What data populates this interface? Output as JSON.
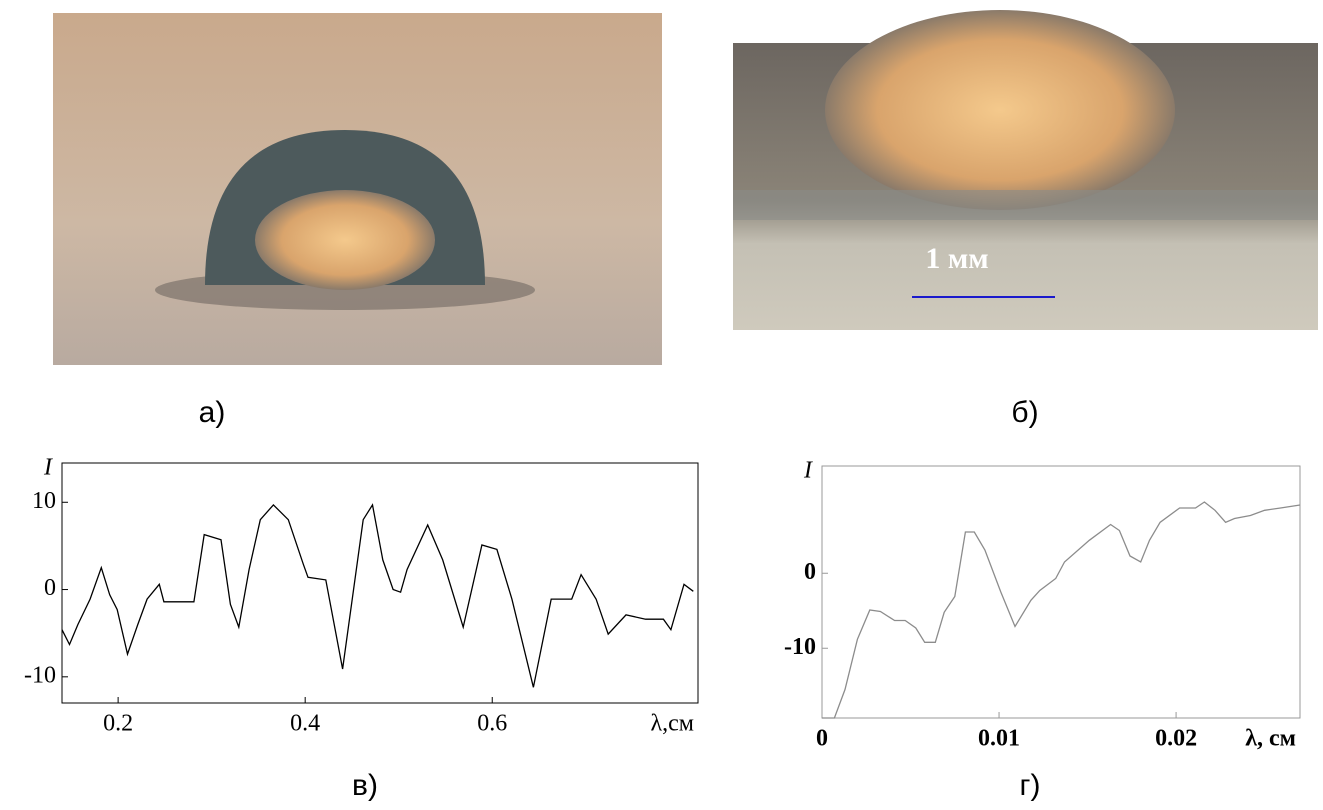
{
  "photos": [
    {
      "caption": "а)"
    },
    {
      "caption": "б)",
      "scale_label": "1 мм"
    }
  ],
  "chart_data": [
    {
      "type": "line",
      "caption": "в)",
      "x_label": "λ,см",
      "y_label": "I",
      "color": "#000000",
      "xlim": [
        0.14,
        0.82
      ],
      "ylim": [
        -13,
        14.5
      ],
      "xticks": [
        0.2,
        0.4,
        0.6
      ],
      "yticks": [
        -10,
        0,
        10
      ],
      "x": [
        0.14,
        0.148,
        0.157,
        0.17,
        0.182,
        0.191,
        0.199,
        0.21,
        0.221,
        0.231,
        0.244,
        0.249,
        0.281,
        0.292,
        0.31,
        0.32,
        0.329,
        0.34,
        0.352,
        0.366,
        0.382,
        0.398,
        0.403,
        0.422,
        0.44,
        0.462,
        0.472,
        0.483,
        0.494,
        0.502,
        0.509,
        0.531,
        0.547,
        0.569,
        0.589,
        0.605,
        0.621,
        0.644,
        0.663,
        0.685,
        0.695,
        0.711,
        0.724,
        0.743,
        0.764,
        0.783,
        0.791,
        0.805,
        0.815
      ],
      "values": [
        -4.6,
        -6.3,
        -4,
        -1.1,
        2.5,
        -0.6,
        -2.3,
        -7.4,
        -4,
        -1.1,
        0.6,
        -1.4,
        -1.4,
        6.3,
        5.7,
        -1.7,
        -4.3,
        2.3,
        8,
        9.7,
        8,
        2.9,
        1.4,
        1.1,
        -9.1,
        8,
        9.7,
        3.4,
        0,
        -0.3,
        2.3,
        7.4,
        3.4,
        -4.3,
        5.1,
        4.6,
        -1.1,
        -11.2,
        -1.1,
        -1.1,
        1.7,
        -1.1,
        -5.1,
        -2.9,
        -3.4,
        -3.4,
        -4.6,
        0.6,
        -0.2
      ]
    },
    {
      "type": "line",
      "caption": "г)",
      "x_label": "λ, см",
      "y_label": "I",
      "color": "#8c8c8c",
      "xlim": [
        0,
        0.027
      ],
      "ylim": [
        -19.3,
        14.3
      ],
      "xticks": [
        0,
        0.01,
        0.02
      ],
      "yticks": [
        -10,
        0
      ],
      "x": [
        0,
        0.0007,
        0.0013,
        0.002,
        0.0027,
        0.0033,
        0.0041,
        0.0047,
        0.0053,
        0.0058,
        0.0064,
        0.0069,
        0.0075,
        0.0081,
        0.0086,
        0.0092,
        0.0101,
        0.0109,
        0.0118,
        0.0123,
        0.0132,
        0.0137,
        0.0151,
        0.0163,
        0.0168,
        0.0174,
        0.018,
        0.0185,
        0.0191,
        0.0202,
        0.0211,
        0.0216,
        0.0222,
        0.0228,
        0.0233,
        0.0242,
        0.025,
        0.0259,
        0.027
      ],
      "values": [
        -19.3,
        -19.3,
        -15.5,
        -8.8,
        -4.9,
        -5.1,
        -6.3,
        -6.3,
        -7.3,
        -9.2,
        -9.2,
        -5.2,
        -3.1,
        5.5,
        5.5,
        3.1,
        -2.5,
        -7.1,
        -3.6,
        -2.3,
        -0.7,
        1.5,
        4.4,
        6.5,
        5.7,
        2.3,
        1.5,
        4.4,
        6.8,
        8.7,
        8.7,
        9.5,
        8.4,
        6.8,
        7.3,
        7.7,
        8.4,
        8.7,
        9.1
      ]
    }
  ]
}
